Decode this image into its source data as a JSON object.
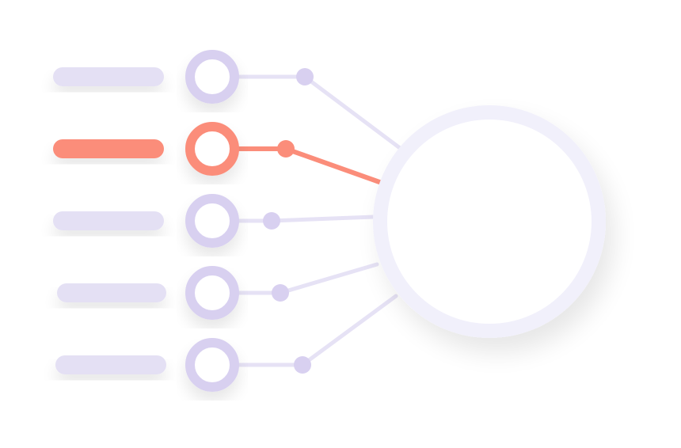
{
  "diagram": {
    "name": "input-selector-to-hub",
    "selected_index": 1,
    "items": [
      {
        "id": "option-1",
        "selected": false
      },
      {
        "id": "option-2",
        "selected": true
      },
      {
        "id": "option-3",
        "selected": false
      },
      {
        "id": "option-4",
        "selected": false
      },
      {
        "id": "option-5",
        "selected": false
      }
    ]
  },
  "colors": {
    "inactive": "#e4e0f4",
    "ring_inactive": "#d8d0f0",
    "line_inactive": "#e6e2f5",
    "active": "#fb8d7a",
    "hub_ring": "#f1f0fb",
    "hub_fill": "#ffffff",
    "background": "#ffffff"
  }
}
